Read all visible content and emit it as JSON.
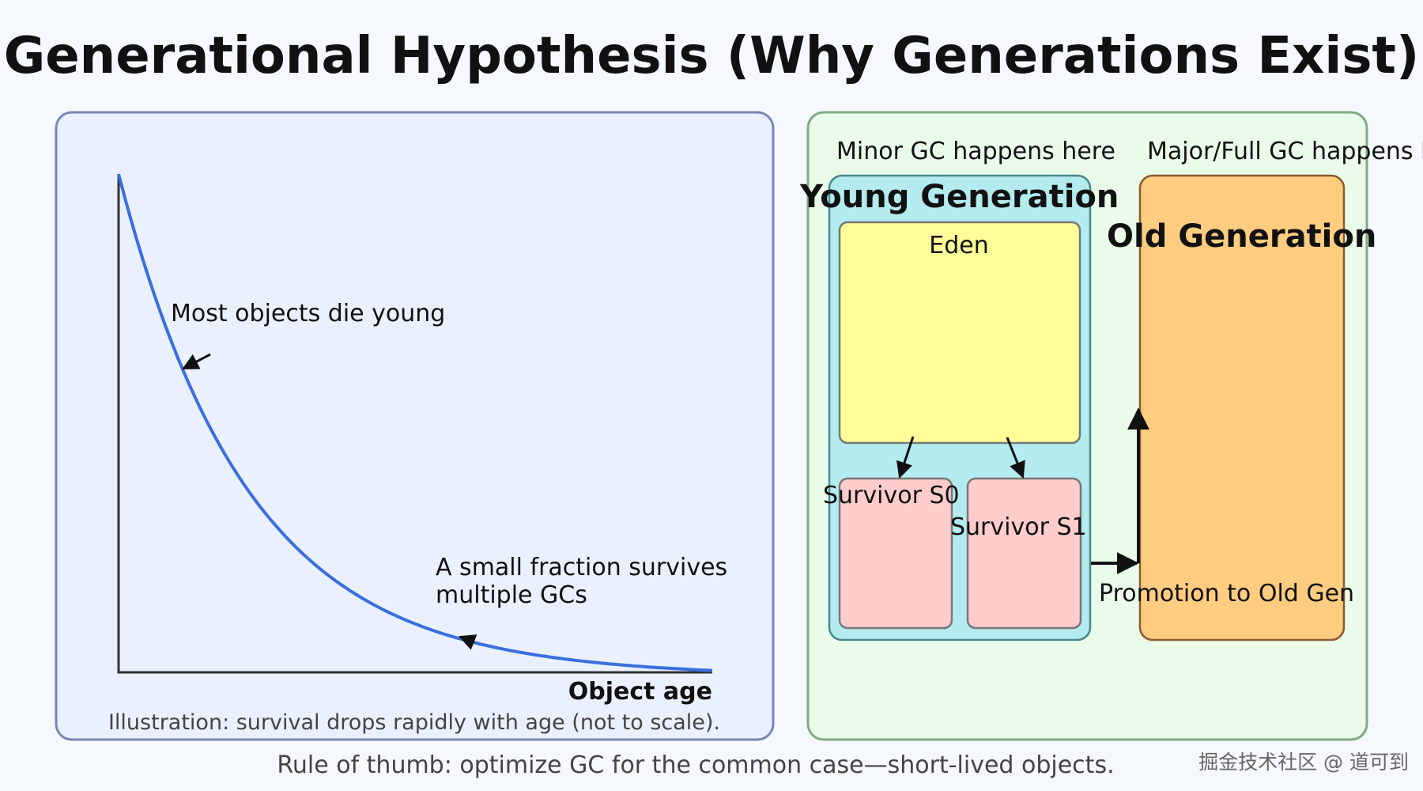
{
  "title": "Generational Hypothesis (Why Generations Exist)",
  "left_panel": {
    "most_die_label": "Most objects die young",
    "survivors_label_line1": "A small fraction survives",
    "survivors_label_line2": "multiple GCs",
    "x_axis_label": "Object age",
    "caption": "Illustration: survival drops rapidly with age (not to scale)."
  },
  "right_panel": {
    "minor_gc_label": "Minor GC happens here",
    "major_gc_label": "Major/Full GC happens here",
    "young_gen_title": "Young Generation",
    "old_gen_title": "Old Generation",
    "eden_label": "Eden",
    "survivor_s0_label": "Survivor S0",
    "survivor_s1_label": "Survivor S1",
    "promotion_label": "Promotion to Old Gen"
  },
  "footer": "Rule of thumb: optimize GC for the common case—short-lived objects.",
  "watermark": "掘金技术社区 @ 道可到",
  "colors": {
    "curve": "#3a6fe0",
    "young": "#b3ebef",
    "old": "#ffcc80",
    "eden": "#ffff99",
    "survivor": "#ffcccc"
  }
}
